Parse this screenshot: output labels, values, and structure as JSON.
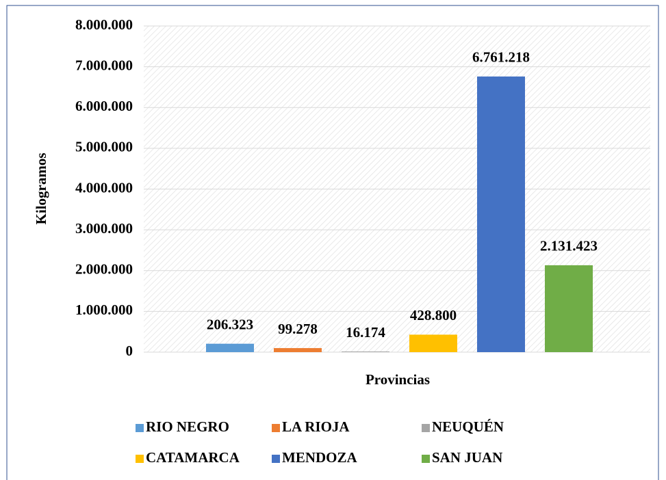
{
  "chart_data": {
    "type": "bar",
    "categories": [
      "RIO NEGRO",
      "LA RIOJA",
      "NEUQUÉN",
      "CATAMARCA",
      "MENDOZA",
      "SAN JUAN"
    ],
    "values": [
      206323,
      99278,
      16174,
      428800,
      6761218,
      2131423
    ],
    "value_labels": [
      "206.323",
      "99.278",
      "16.174",
      "428.800",
      "6.761.218",
      "2.131.423"
    ],
    "colors": [
      "#5B9BD5",
      "#ED7D31",
      "#A5A5A5",
      "#FFC000",
      "#4472C4",
      "#70AD47"
    ],
    "y_label": "Kilogramos",
    "x_label": "Provincias",
    "ylim": [
      0,
      8000000
    ],
    "yticks": [
      0,
      {
        "value": 1000000,
        "label": "1.000.000"
      },
      {
        "value": 2000000,
        "label": "2.000.000"
      },
      {
        "value": 3000000,
        "label": "3.000.000"
      },
      {
        "value": 4000000,
        "label": "4.000.000"
      },
      {
        "value": 5000000,
        "label": "5.000.000"
      },
      {
        "value": 6000000,
        "label": "6.000.000"
      },
      {
        "value": 7000000,
        "label": "7.000.000"
      },
      {
        "value": 8000000,
        "label": "8.000.000"
      }
    ],
    "grid": true,
    "legend": "bottom"
  }
}
